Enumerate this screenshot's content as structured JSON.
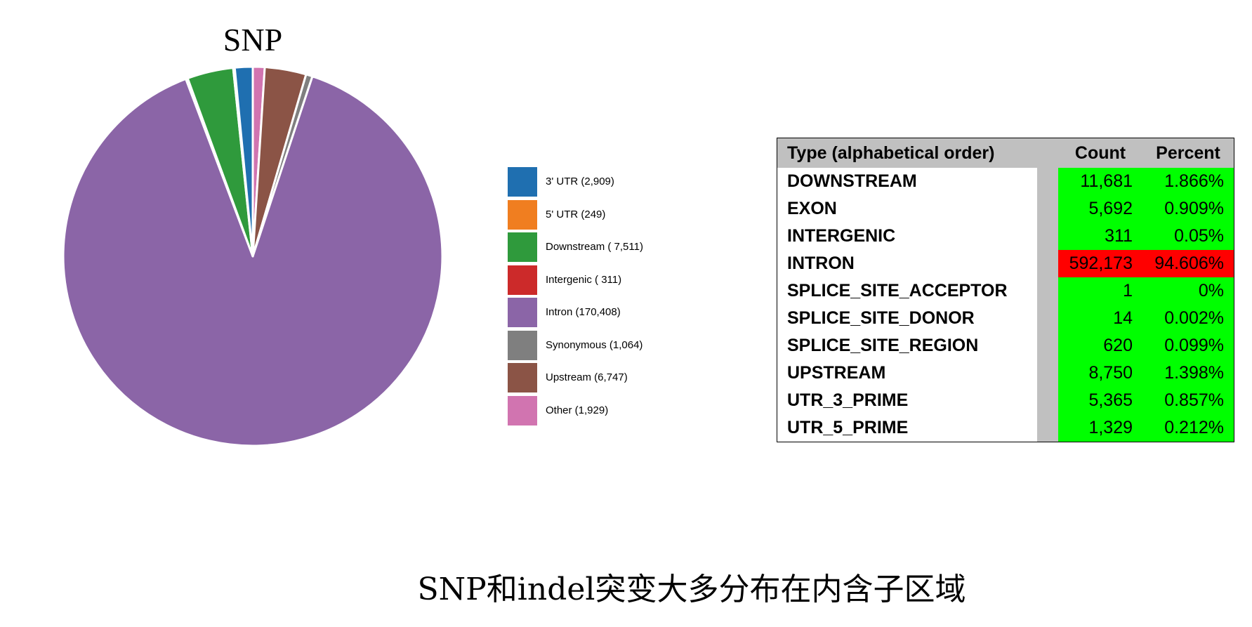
{
  "chart_data": [
    {
      "type": "pie",
      "title": "SNP",
      "legend_position": "right",
      "slices": [
        {
          "label": "3' UTR (2,909)",
          "value": 2909,
          "color": "#1f6fb0"
        },
        {
          "label": "5' UTR (249)",
          "value": 249,
          "color": "#f07e20"
        },
        {
          "label": "Downstream ( 7,511)",
          "value": 7511,
          "color": "#2f9a3c"
        },
        {
          "label": "Intergenic ( 311)",
          "value": 311,
          "color": "#cc2a2a"
        },
        {
          "label": "Intron (170,408)",
          "value": 170408,
          "color": "#8b65a7"
        },
        {
          "label": "Synonymous (1,064)",
          "value": 1064,
          "color": "#7f7f7f"
        },
        {
          "label": "Upstream (6,747)",
          "value": 6747,
          "color": "#8b5446"
        },
        {
          "label": "Other (1,929)",
          "value": 1929,
          "color": "#d174b0"
        }
      ],
      "draw_order": [
        "Other (1,929)",
        "Upstream (6,747)",
        "Synonymous (1,064)",
        "Intron (170,408)",
        "Intergenic ( 311)",
        "Downstream ( 7,511)",
        "5' UTR (249)",
        "3' UTR (2,909)"
      ]
    },
    {
      "type": "table",
      "columns": [
        "Type (alphabetical order)",
        "Count",
        "Percent"
      ],
      "rows": [
        {
          "type": "DOWNSTREAM",
          "count": "11,681",
          "percent": "1.866%",
          "highlight": "#00ff00"
        },
        {
          "type": "EXON",
          "count": "5,692",
          "percent": "0.909%",
          "highlight": "#00ff00"
        },
        {
          "type": "INTERGENIC",
          "count": "311",
          "percent": "0.05%",
          "highlight": "#00ff00"
        },
        {
          "type": "INTRON",
          "count": "592,173",
          "percent": "94.606%",
          "highlight": "#ff0000"
        },
        {
          "type": "SPLICE_SITE_ACCEPTOR",
          "count": "1",
          "percent": "0%",
          "highlight": "#00ff00"
        },
        {
          "type": "SPLICE_SITE_DONOR",
          "count": "14",
          "percent": "0.002%",
          "highlight": "#00ff00"
        },
        {
          "type": "SPLICE_SITE_REGION",
          "count": "620",
          "percent": "0.099%",
          "highlight": "#00ff00"
        },
        {
          "type": "UPSTREAM",
          "count": "8,750",
          "percent": "1.398%",
          "highlight": "#00ff00"
        },
        {
          "type": "UTR_3_PRIME",
          "count": "5,365",
          "percent": "0.857%",
          "highlight": "#00ff00"
        },
        {
          "type": "UTR_5_PRIME",
          "count": "1,329",
          "percent": "0.212%",
          "highlight": "#00ff00"
        }
      ]
    }
  ],
  "caption": "SNP和indel突变大多分布在内含子区域"
}
